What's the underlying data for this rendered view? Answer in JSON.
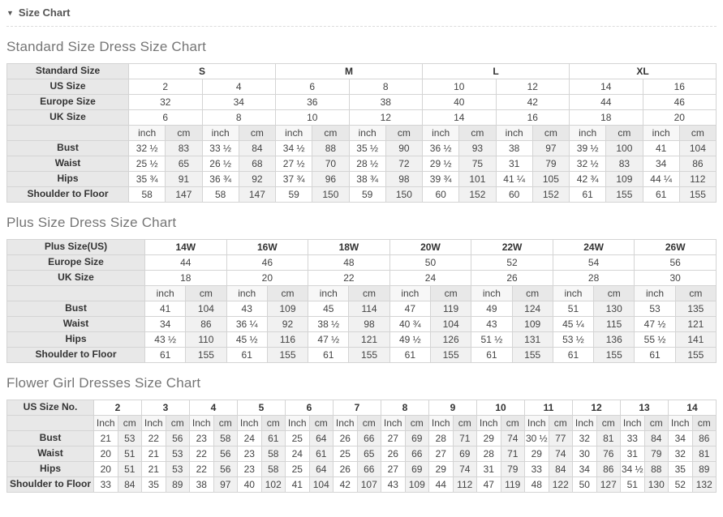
{
  "section_header": {
    "label": "Size Chart",
    "collapse_icon": "▼"
  },
  "tables": [
    {
      "name": "standard-size-table",
      "title": "Standard Size Dress Size Chart",
      "label_width": 150,
      "rows": [
        {
          "label": "Standard Size",
          "type": "head",
          "span": 4,
          "cells": [
            "S",
            "M",
            "L",
            "XL"
          ]
        },
        {
          "label": "US Size",
          "type": "size",
          "span": 2,
          "cells": [
            "2",
            "4",
            "6",
            "8",
            "10",
            "12",
            "14",
            "16"
          ]
        },
        {
          "label": "Europe Size",
          "type": "size",
          "span": 2,
          "cells": [
            "32",
            "34",
            "36",
            "38",
            "40",
            "42",
            "44",
            "46"
          ]
        },
        {
          "label": "UK Size",
          "type": "size",
          "span": 2,
          "cells": [
            "6",
            "8",
            "10",
            "12",
            "14",
            "16",
            "18",
            "20"
          ]
        },
        {
          "label": "",
          "type": "units",
          "span": 1,
          "cells": [
            "inch",
            "cm",
            "inch",
            "cm",
            "inch",
            "cm",
            "inch",
            "cm",
            "inch",
            "cm",
            "inch",
            "cm",
            "inch",
            "cm",
            "inch",
            "cm"
          ]
        },
        {
          "label": "Bust",
          "type": "data",
          "span": 1,
          "cells": [
            "32 ½",
            "83",
            "33 ½",
            "84",
            "34 ½",
            "88",
            "35 ½",
            "90",
            "36 ½",
            "93",
            "38",
            "97",
            "39 ½",
            "100",
            "41",
            "104"
          ]
        },
        {
          "label": "Waist",
          "type": "data",
          "span": 1,
          "cells": [
            "25 ½",
            "65",
            "26 ½",
            "68",
            "27 ½",
            "70",
            "28 ½",
            "72",
            "29 ½",
            "75",
            "31",
            "79",
            "32 ½",
            "83",
            "34",
            "86"
          ]
        },
        {
          "label": "Hips",
          "type": "data",
          "span": 1,
          "cells": [
            "35 ¾",
            "91",
            "36 ¾",
            "92",
            "37 ¾",
            "96",
            "38 ¾",
            "98",
            "39 ¾",
            "101",
            "41 ¼",
            "105",
            "42 ¾",
            "109",
            "44 ¼",
            "112"
          ]
        },
        {
          "label": "Shoulder to Floor",
          "type": "data",
          "span": 1,
          "cells": [
            "58",
            "147",
            "58",
            "147",
            "59",
            "150",
            "59",
            "150",
            "60",
            "152",
            "60",
            "152",
            "61",
            "155",
            "61",
            "155"
          ]
        }
      ]
    },
    {
      "name": "plus-size-table",
      "title": "Plus Size Dress Size Chart",
      "label_width": 170,
      "rows": [
        {
          "label": "Plus Size(US)",
          "type": "head",
          "span": 2,
          "cells": [
            "14W",
            "16W",
            "18W",
            "20W",
            "22W",
            "24W",
            "26W"
          ]
        },
        {
          "label": "Europe Size",
          "type": "size",
          "span": 2,
          "cells": [
            "44",
            "46",
            "48",
            "50",
            "52",
            "54",
            "56"
          ]
        },
        {
          "label": "UK Size",
          "type": "size",
          "span": 2,
          "cells": [
            "18",
            "20",
            "22",
            "24",
            "26",
            "28",
            "30"
          ]
        },
        {
          "label": "",
          "type": "units",
          "span": 1,
          "cells": [
            "inch",
            "cm",
            "inch",
            "cm",
            "inch",
            "cm",
            "inch",
            "cm",
            "inch",
            "cm",
            "inch",
            "cm",
            "inch",
            "cm"
          ]
        },
        {
          "label": "Bust",
          "type": "data",
          "span": 1,
          "cells": [
            "41",
            "104",
            "43",
            "109",
            "45",
            "114",
            "47",
            "119",
            "49",
            "124",
            "51",
            "130",
            "53",
            "135"
          ]
        },
        {
          "label": "Waist",
          "type": "data",
          "span": 1,
          "cells": [
            "34",
            "86",
            "36 ¼",
            "92",
            "38 ½",
            "98",
            "40 ¾",
            "104",
            "43",
            "109",
            "45 ¼",
            "115",
            "47 ½",
            "121"
          ]
        },
        {
          "label": "Hips",
          "type": "data",
          "span": 1,
          "cells": [
            "43 ½",
            "110",
            "45 ½",
            "116",
            "47 ½",
            "121",
            "49 ½",
            "126",
            "51 ½",
            "131",
            "53 ½",
            "136",
            "55 ½",
            "141"
          ]
        },
        {
          "label": "Shoulder to Floor",
          "type": "data",
          "span": 1,
          "cells": [
            "61",
            "155",
            "61",
            "155",
            "61",
            "155",
            "61",
            "155",
            "61",
            "155",
            "61",
            "155",
            "61",
            "155"
          ]
        }
      ]
    },
    {
      "name": "flower-girl-table",
      "title": "Flower Girl Dresses Size Chart",
      "label_width": 107,
      "rows": [
        {
          "label": "US Size No.",
          "type": "head",
          "span": 2,
          "cells": [
            "2",
            "3",
            "4",
            "5",
            "6",
            "7",
            "8",
            "9",
            "10",
            "11",
            "12",
            "13",
            "14"
          ]
        },
        {
          "label": "",
          "type": "units",
          "span": 1,
          "cells": [
            "Inch",
            "cm",
            "Inch",
            "cm",
            "Inch",
            "cm",
            "Inch",
            "cm",
            "Inch",
            "cm",
            "Inch",
            "cm",
            "Inch",
            "cm",
            "Inch",
            "cm",
            "Inch",
            "cm",
            "Inch",
            "cm",
            "Inch",
            "cm",
            "Inch",
            "cm",
            "Inch",
            "cm"
          ]
        },
        {
          "label": "Bust",
          "type": "data",
          "span": 1,
          "cells": [
            "21",
            "53",
            "22",
            "56",
            "23",
            "58",
            "24",
            "61",
            "25",
            "64",
            "26",
            "66",
            "27",
            "69",
            "28",
            "71",
            "29",
            "74",
            "30 ½",
            "77",
            "32",
            "81",
            "33",
            "84",
            "34",
            "86"
          ]
        },
        {
          "label": "Waist",
          "type": "data",
          "span": 1,
          "cells": [
            "20",
            "51",
            "21",
            "53",
            "22",
            "56",
            "23",
            "58",
            "24",
            "61",
            "25",
            "65",
            "26",
            "66",
            "27",
            "69",
            "28",
            "71",
            "29",
            "74",
            "30",
            "76",
            "31",
            "79",
            "32",
            "81"
          ]
        },
        {
          "label": "Hips",
          "type": "data",
          "span": 1,
          "cells": [
            "20",
            "51",
            "21",
            "53",
            "22",
            "56",
            "23",
            "58",
            "25",
            "64",
            "26",
            "66",
            "27",
            "69",
            "29",
            "74",
            "31",
            "79",
            "33",
            "84",
            "34",
            "86",
            "34 ½",
            "88",
            "35",
            "89"
          ]
        },
        {
          "label": "Shoulder to Floor",
          "type": "data",
          "span": 1,
          "cells": [
            "33",
            "84",
            "35",
            "89",
            "38",
            "97",
            "40",
            "102",
            "41",
            "104",
            "42",
            "107",
            "43",
            "109",
            "44",
            "112",
            "47",
            "119",
            "48",
            "122",
            "50",
            "127",
            "51",
            "130",
            "52",
            "132"
          ]
        }
      ]
    }
  ]
}
